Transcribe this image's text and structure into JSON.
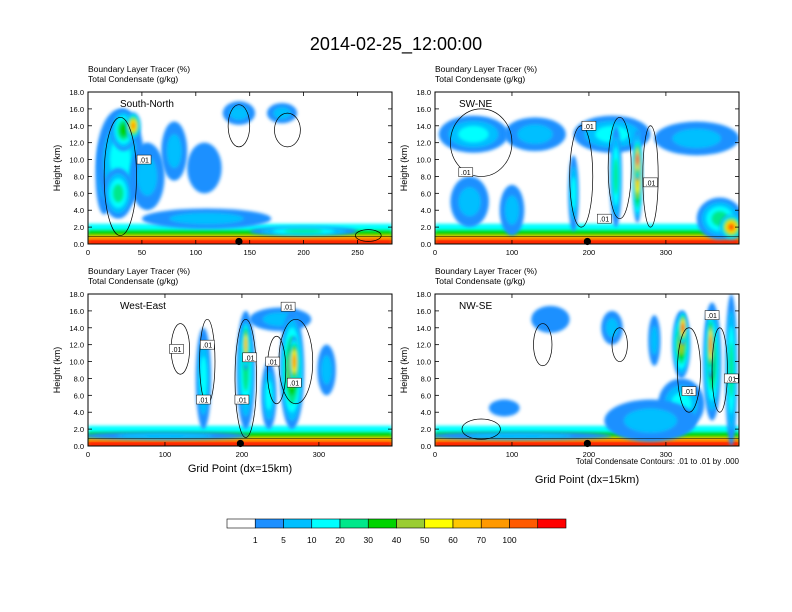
{
  "title": "2014-02-25_12:00:00",
  "panel_label_1": "Boundary Layer Tracer   (%)",
  "panel_label_2": "Total Condensate   (g/kg)",
  "ylabel": "Height (km)",
  "xlabel": "Grid Point (dx=15km)",
  "contour_note": "Total Condensate Contours: .01 to .01 by .000",
  "contour_label": ".01",
  "colors": [
    "#ffffff",
    "#1e90ff",
    "#00bfff",
    "#00ffff",
    "#00e88a",
    "#00d400",
    "#9acd32",
    "#ffff00",
    "#ffc800",
    "#ff9900",
    "#ff5a00",
    "#ff0000"
  ],
  "colorbar_labels": [
    "1",
    "5",
    "10",
    "20",
    "30",
    "40",
    "50",
    "60",
    "70",
    "100"
  ],
  "chart_data": [
    {
      "type": "heatmap",
      "name": "South-North",
      "title": "South-North",
      "xlim": [
        0,
        282
      ],
      "ylim": [
        0,
        18
      ],
      "x_ticks": [
        {
          "v": 0,
          "l": "0"
        },
        {
          "v": 50,
          "l": "50"
        },
        {
          "v": 100,
          "l": "100"
        },
        {
          "v": 150,
          "l": "150"
        },
        {
          "v": 200,
          "l": "200"
        },
        {
          "v": 250,
          "l": "250"
        }
      ],
      "y_ticks": [
        "0.0",
        "2.0",
        "4.0",
        "6.0",
        "8.0",
        "10.0",
        "12.0",
        "14.0",
        "16.0",
        "18.0"
      ],
      "marker_x": 140,
      "features": [
        {
          "x": 15,
          "y": 8,
          "rx": 8,
          "ry": 4.5,
          "i": 2
        },
        {
          "x": 30,
          "y": 10,
          "rx": 22,
          "ry": 6,
          "i": 3
        },
        {
          "x": 33,
          "y": 13.5,
          "rx": 12,
          "ry": 2.5,
          "i": 5
        },
        {
          "x": 42,
          "y": 14,
          "rx": 7,
          "ry": 1.6,
          "i": 9
        },
        {
          "x": 28,
          "y": 6,
          "rx": 14,
          "ry": 3,
          "i": 4
        },
        {
          "x": 55,
          "y": 8,
          "rx": 16,
          "ry": 4,
          "i": 2
        },
        {
          "x": 80,
          "y": 11,
          "rx": 12,
          "ry": 3.5,
          "i": 2
        },
        {
          "x": 108,
          "y": 9,
          "rx": 16,
          "ry": 3,
          "i": 1
        },
        {
          "x": 140,
          "y": 15.5,
          "rx": 15,
          "ry": 1.4,
          "i": 2
        },
        {
          "x": 180,
          "y": 15.5,
          "rx": 14,
          "ry": 1.2,
          "i": 2
        },
        {
          "x": 110,
          "y": 3,
          "rx": 60,
          "ry": 1.2,
          "i": 2
        },
        {
          "x": 200,
          "y": 1.5,
          "rx": 50,
          "ry": 0.6,
          "i": 4
        }
      ],
      "contours": [
        {
          "x": 30,
          "y": 8,
          "rx": 15,
          "ry": 7
        },
        {
          "x": 140,
          "y": 14,
          "rx": 10,
          "ry": 2.5
        },
        {
          "x": 185,
          "y": 13.5,
          "rx": 12,
          "ry": 2
        },
        {
          "x": 260,
          "y": 1,
          "rx": 12,
          "ry": 0.7
        }
      ],
      "tags": [
        {
          "x": 52,
          "y": 10
        }
      ]
    },
    {
      "type": "heatmap",
      "name": "SW-NE",
      "title": "SW-NE",
      "xlim": [
        0,
        395
      ],
      "ylim": [
        0,
        18
      ],
      "x_ticks": [
        {
          "v": 0,
          "l": "0"
        },
        {
          "v": 100,
          "l": "100"
        },
        {
          "v": 200,
          "l": "200"
        },
        {
          "v": 300,
          "l": "300"
        }
      ],
      "y_ticks": [
        "0.0",
        "2.0",
        "4.0",
        "6.0",
        "8.0",
        "10.0",
        "12.0",
        "14.0",
        "16.0",
        "18.0"
      ],
      "marker_x": 198,
      "features": [
        {
          "x": 50,
          "y": 13,
          "rx": 45,
          "ry": 2.2,
          "i": 3
        },
        {
          "x": 130,
          "y": 13,
          "rx": 40,
          "ry": 2,
          "i": 2
        },
        {
          "x": 230,
          "y": 13,
          "rx": 50,
          "ry": 2.2,
          "i": 3
        },
        {
          "x": 340,
          "y": 12.5,
          "rx": 55,
          "ry": 2,
          "i": 2
        },
        {
          "x": 263,
          "y": 8,
          "rx": 7,
          "ry": 5.5,
          "i": 8
        },
        {
          "x": 263,
          "y": 10,
          "rx": 4,
          "ry": 2.5,
          "i": 10
        },
        {
          "x": 235,
          "y": 8,
          "rx": 8,
          "ry": 6,
          "i": 4
        },
        {
          "x": 180,
          "y": 6,
          "rx": 7,
          "ry": 4.5,
          "i": 3
        },
        {
          "x": 45,
          "y": 5,
          "rx": 25,
          "ry": 3,
          "i": 2
        },
        {
          "x": 100,
          "y": 4,
          "rx": 16,
          "ry": 3,
          "i": 2
        },
        {
          "x": 370,
          "y": 3,
          "rx": 30,
          "ry": 2.5,
          "i": 4
        },
        {
          "x": 385,
          "y": 2,
          "rx": 15,
          "ry": 1.5,
          "i": 10
        }
      ],
      "contours": [
        {
          "x": 60,
          "y": 12,
          "rx": 40,
          "ry": 4
        },
        {
          "x": 190,
          "y": 8,
          "rx": 15,
          "ry": 6
        },
        {
          "x": 240,
          "y": 9,
          "rx": 15,
          "ry": 6
        },
        {
          "x": 280,
          "y": 8,
          "rx": 10,
          "ry": 6
        }
      ],
      "tags": [
        {
          "x": 40,
          "y": 8.5
        },
        {
          "x": 200,
          "y": 14
        },
        {
          "x": 220,
          "y": 3
        },
        {
          "x": 280,
          "y": 7.3
        }
      ]
    },
    {
      "type": "heatmap",
      "name": "West-East",
      "title": "West-East",
      "xlim": [
        0,
        395
      ],
      "ylim": [
        0,
        18
      ],
      "x_ticks": [
        {
          "v": 0,
          "l": "0"
        },
        {
          "v": 100,
          "l": "100"
        },
        {
          "v": 200,
          "l": "200"
        },
        {
          "v": 300,
          "l": "300"
        }
      ],
      "y_ticks": [
        "0.0",
        "2.0",
        "4.0",
        "6.0",
        "8.0",
        "10.0",
        "12.0",
        "14.0",
        "16.0",
        "18.0"
      ],
      "marker_x": 198,
      "features": [
        {
          "x": 150,
          "y": 8,
          "rx": 10,
          "ry": 6,
          "i": 3
        },
        {
          "x": 205,
          "y": 9,
          "rx": 12,
          "ry": 7,
          "i": 4
        },
        {
          "x": 205,
          "y": 12,
          "rx": 5,
          "ry": 3,
          "i": 8
        },
        {
          "x": 250,
          "y": 15,
          "rx": 40,
          "ry": 1.4,
          "i": 2
        },
        {
          "x": 265,
          "y": 9,
          "rx": 16,
          "ry": 7,
          "i": 6
        },
        {
          "x": 268,
          "y": 10,
          "rx": 7,
          "ry": 3,
          "i": 9
        },
        {
          "x": 235,
          "y": 6,
          "rx": 10,
          "ry": 4,
          "i": 3
        },
        {
          "x": 310,
          "y": 9,
          "rx": 12,
          "ry": 3,
          "i": 2
        },
        {
          "x": 100,
          "y": 1.2,
          "rx": 110,
          "ry": 0.5,
          "i": 2
        }
      ],
      "contours": [
        {
          "x": 120,
          "y": 11.5,
          "rx": 12,
          "ry": 3
        },
        {
          "x": 155,
          "y": 10,
          "rx": 10,
          "ry": 5
        },
        {
          "x": 205,
          "y": 8,
          "rx": 14,
          "ry": 7
        },
        {
          "x": 245,
          "y": 9,
          "rx": 12,
          "ry": 4
        },
        {
          "x": 270,
          "y": 10,
          "rx": 22,
          "ry": 5
        }
      ],
      "tags": [
        {
          "x": 115,
          "y": 11.5
        },
        {
          "x": 155,
          "y": 12
        },
        {
          "x": 150,
          "y": 5.5
        },
        {
          "x": 200,
          "y": 5.5
        },
        {
          "x": 210,
          "y": 10.5
        },
        {
          "x": 240,
          "y": 10
        },
        {
          "x": 260,
          "y": 16.5
        },
        {
          "x": 268,
          "y": 7.5
        }
      ]
    },
    {
      "type": "heatmap",
      "name": "NW-SE",
      "title": "NW-SE",
      "xlim": [
        0,
        395
      ],
      "ylim": [
        0,
        18
      ],
      "x_ticks": [
        {
          "v": 0,
          "l": "0"
        },
        {
          "v": 100,
          "l": "100"
        },
        {
          "v": 200,
          "l": "200"
        },
        {
          "v": 300,
          "l": "300"
        }
      ],
      "y_ticks": [
        "0.0",
        "2.0",
        "4.0",
        "6.0",
        "8.0",
        "10.0",
        "12.0",
        "14.0",
        "16.0",
        "18.0"
      ],
      "marker_x": 198,
      "features": [
        {
          "x": 150,
          "y": 15,
          "rx": 25,
          "ry": 1.6,
          "i": 1
        },
        {
          "x": 230,
          "y": 14,
          "rx": 14,
          "ry": 2,
          "i": 2
        },
        {
          "x": 285,
          "y": 12.5,
          "rx": 8,
          "ry": 3,
          "i": 2
        },
        {
          "x": 320,
          "y": 12,
          "rx": 12,
          "ry": 4,
          "i": 6
        },
        {
          "x": 322,
          "y": 14,
          "rx": 6,
          "ry": 2,
          "i": 10
        },
        {
          "x": 360,
          "y": 10,
          "rx": 12,
          "ry": 7,
          "i": 5
        },
        {
          "x": 358,
          "y": 12,
          "rx": 5,
          "ry": 4,
          "i": 9
        },
        {
          "x": 385,
          "y": 9,
          "rx": 8,
          "ry": 9,
          "i": 4
        },
        {
          "x": 320,
          "y": 5,
          "rx": 30,
          "ry": 3,
          "i": 3
        },
        {
          "x": 90,
          "y": 4.5,
          "rx": 20,
          "ry": 1,
          "i": 1
        },
        {
          "x": 280,
          "y": 3,
          "rx": 60,
          "ry": 2.5,
          "i": 2
        },
        {
          "x": 110,
          "y": 1.2,
          "rx": 120,
          "ry": 0.5,
          "i": 2
        }
      ],
      "contours": [
        {
          "x": 140,
          "y": 12,
          "rx": 12,
          "ry": 2.5
        },
        {
          "x": 240,
          "y": 12,
          "rx": 10,
          "ry": 2
        },
        {
          "x": 330,
          "y": 9,
          "rx": 15,
          "ry": 5
        },
        {
          "x": 370,
          "y": 9,
          "rx": 10,
          "ry": 5
        },
        {
          "x": 60,
          "y": 2,
          "rx": 25,
          "ry": 1.2
        }
      ],
      "tags": [
        {
          "x": 330,
          "y": 6.5
        },
        {
          "x": 360,
          "y": 15.5
        },
        {
          "x": 385,
          "y": 8
        }
      ]
    }
  ]
}
